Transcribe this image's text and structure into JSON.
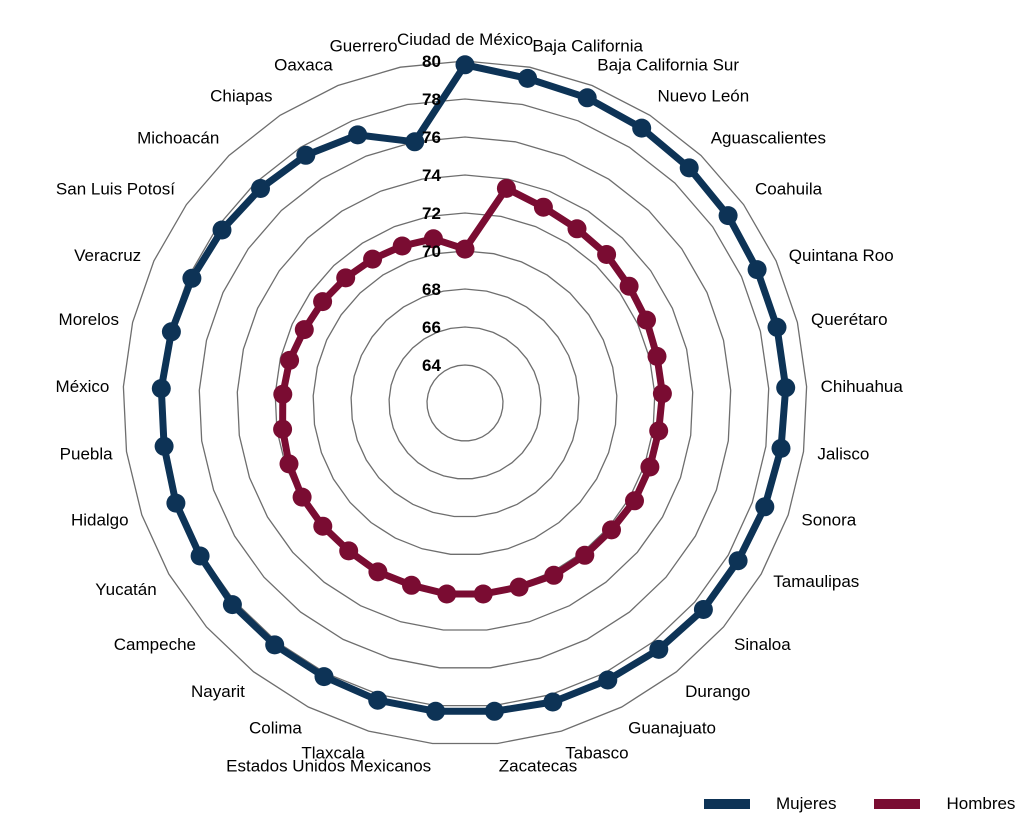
{
  "chart_data": {
    "type": "radar",
    "title": "",
    "categories": [
      "Ciudad de México",
      "Baja California",
      "Baja California Sur",
      "Nuevo León",
      "Aguascalientes",
      "Coahuila",
      "Quintana Roo",
      "Querétaro",
      "Chihuahua",
      "Jalisco",
      "Sonora",
      "Tamaulipas",
      "Sinaloa",
      "Durango",
      "Guanajuato",
      "Tabasco",
      "Zacatecas",
      "Estados Unidos Mexicanos",
      "Tlaxcala",
      "Colima",
      "Nayarit",
      "Campeche",
      "Yucatán",
      "Hidalgo",
      "Puebla",
      "México",
      "Morelos",
      "Veracruz",
      "San Luis Potosí",
      "Michoacán",
      "Chiapas",
      "Oaxaca",
      "Guerrero"
    ],
    "series": [
      {
        "name": "Mujeres",
        "color": "#0d3356",
        "values": [
          79.8,
          79.4,
          79.3,
          79.2,
          79.1,
          79.0,
          78.9,
          78.9,
          78.9,
          78.8,
          78.7,
          78.6,
          78.6,
          78.5,
          78.4,
          78.4,
          78.3,
          78.3,
          78.3,
          78.2,
          78.2,
          78.2,
          78.1,
          78.1,
          78.0,
          78.0,
          77.9,
          77.8,
          77.7,
          77.6,
          77.5,
          77.2,
          76.0
        ]
      },
      {
        "name": "Hombres",
        "color": "#7a0c32",
        "values": [
          70.1,
          73.5,
          73.1,
          72.9,
          72.8,
          72.6,
          72.5,
          72.4,
          72.4,
          72.3,
          72.3,
          72.3,
          72.2,
          72.2,
          72.2,
          72.1,
          72.1,
          72.1,
          72.0,
          72.0,
          71.9,
          71.9,
          71.9,
          71.8,
          71.7,
          71.6,
          71.5,
          71.3,
          71.2,
          71.1,
          71.0,
          70.9,
          70.8
        ]
      }
    ],
    "r_ticks": [
      64,
      66,
      68,
      70,
      72,
      74,
      76,
      78,
      80
    ],
    "r_range": [
      62,
      80
    ],
    "grid": true,
    "legend_position": "bottom-right"
  }
}
